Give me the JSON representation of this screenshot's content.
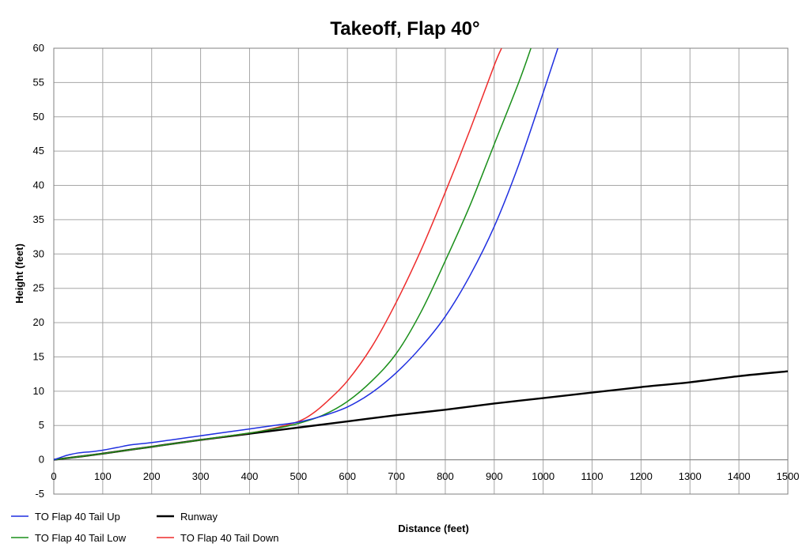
{
  "chart_data": {
    "type": "line",
    "title": "Takeoff, Flap 40°",
    "xlabel": "Distance (feet)",
    "ylabel": "Height (feet)",
    "xlim": [
      0,
      1500
    ],
    "ylim": [
      -5,
      60
    ],
    "xticks": [
      0,
      100,
      200,
      300,
      400,
      500,
      600,
      700,
      800,
      900,
      1000,
      1100,
      1200,
      1300,
      1400,
      1500
    ],
    "yticks": [
      -5,
      0,
      5,
      10,
      15,
      20,
      25,
      30,
      35,
      40,
      45,
      50,
      55,
      60
    ],
    "grid": true,
    "legend_position": "bottom",
    "series": [
      {
        "name": "TO Flap 40 Tail Up",
        "color": "#1f2fe0",
        "x": [
          0,
          20,
          30,
          50,
          80,
          100,
          130,
          160,
          200,
          250,
          300,
          350,
          400,
          450,
          500,
          550,
          600,
          650,
          700,
          750,
          800,
          850,
          900,
          950,
          1000,
          1030
        ],
        "y": [
          0,
          0.5,
          0.7,
          1.0,
          1.2,
          1.4,
          1.8,
          2.2,
          2.5,
          3.0,
          3.5,
          4.0,
          4.5,
          5.0,
          5.5,
          6.4,
          7.7,
          9.8,
          12.7,
          16.4,
          20.9,
          26.8,
          34.0,
          43.0,
          53.5,
          60.0
        ]
      },
      {
        "name": "Runway",
        "color": "#000000",
        "x": [
          0,
          100,
          200,
          300,
          400,
          500,
          600,
          700,
          800,
          900,
          1000,
          1100,
          1200,
          1300,
          1400,
          1500
        ],
        "y": [
          0,
          0.9,
          1.9,
          2.9,
          3.8,
          4.7,
          5.6,
          6.5,
          7.3,
          8.2,
          9.0,
          9.8,
          10.6,
          11.3,
          12.2,
          12.9
        ]
      },
      {
        "name": "TO Flap 40 Tail Low",
        "color": "#1a8f1a",
        "x": [
          0,
          100,
          200,
          300,
          400,
          450,
          500,
          550,
          600,
          650,
          700,
          750,
          800,
          850,
          900,
          950,
          975
        ],
        "y": [
          0,
          0.9,
          1.9,
          2.9,
          3.9,
          4.5,
          5.3,
          6.5,
          8.5,
          11.5,
          15.5,
          21.5,
          29.0,
          37.0,
          46.0,
          55.0,
          60.0
        ]
      },
      {
        "name": "TO Flap 40 Tail Down",
        "color": "#ee2c2c",
        "x": [
          0,
          100,
          200,
          300,
          400,
          450,
          500,
          530,
          560,
          600,
          650,
          700,
          750,
          800,
          850,
          900,
          915
        ],
        "y": [
          0,
          0.9,
          1.9,
          2.9,
          3.9,
          4.6,
          5.6,
          6.8,
          8.6,
          11.5,
          16.5,
          23.0,
          30.5,
          39.0,
          48.0,
          57.5,
          60.0
        ]
      }
    ]
  }
}
